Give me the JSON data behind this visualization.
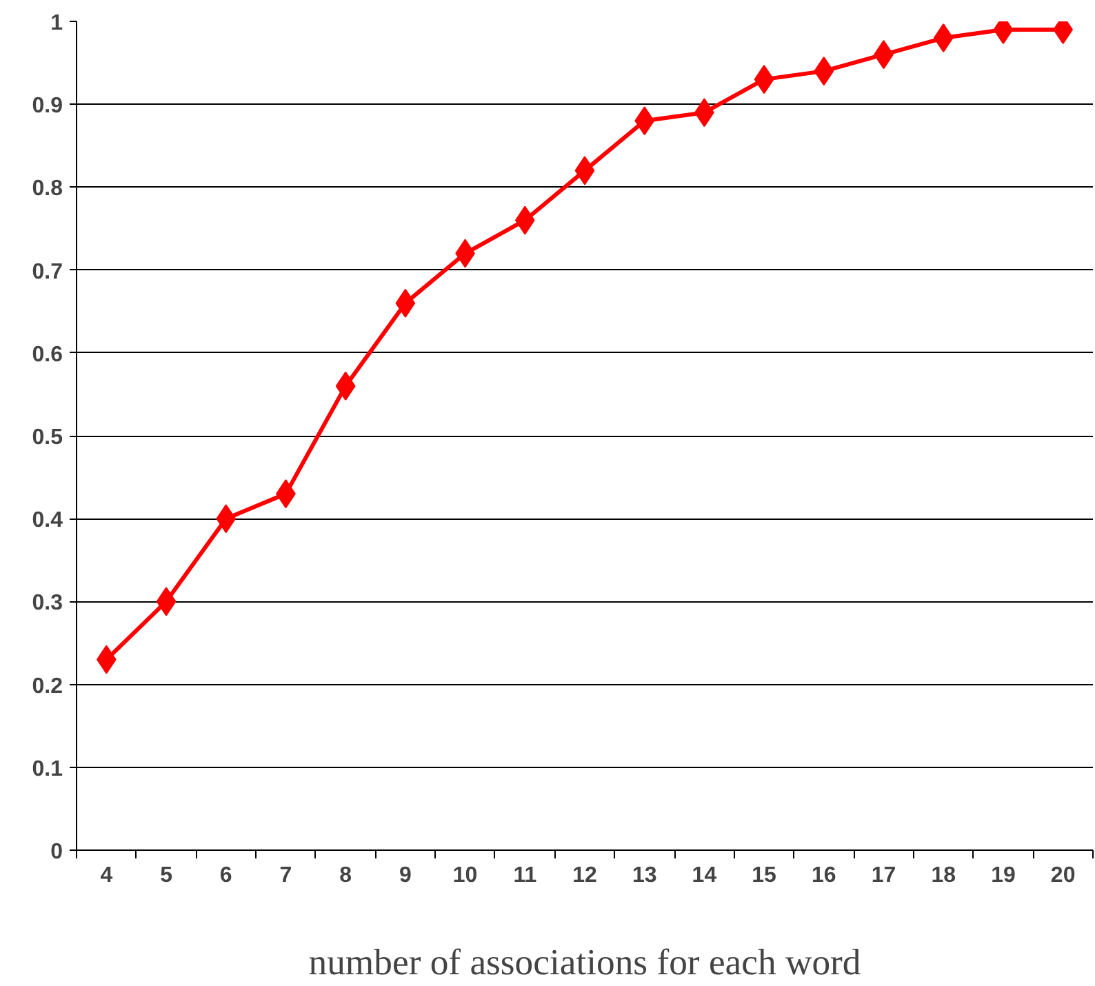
{
  "chart_data": {
    "type": "line",
    "xlabel": "number of associations for each word",
    "categories": [
      "4",
      "5",
      "6",
      "7",
      "8",
      "9",
      "10",
      "11",
      "12",
      "13",
      "14",
      "15",
      "16",
      "17",
      "18",
      "19",
      "20"
    ],
    "series": [
      {
        "color": "#ff0000",
        "values": [
          0.23,
          0.3,
          0.4,
          0.43,
          0.56,
          0.66,
          0.72,
          0.76,
          0.82,
          0.88,
          0.89,
          0.93,
          0.94,
          0.96,
          0.98,
          0.99,
          0.99
        ]
      }
    ],
    "ylim": [
      0,
      1
    ],
    "yticks": [
      0,
      0.1,
      0.2,
      0.3,
      0.4,
      0.5,
      0.6,
      0.7,
      0.8,
      0.9,
      1
    ],
    "grid": "y",
    "marker": "diamond",
    "line_style": "solid"
  }
}
